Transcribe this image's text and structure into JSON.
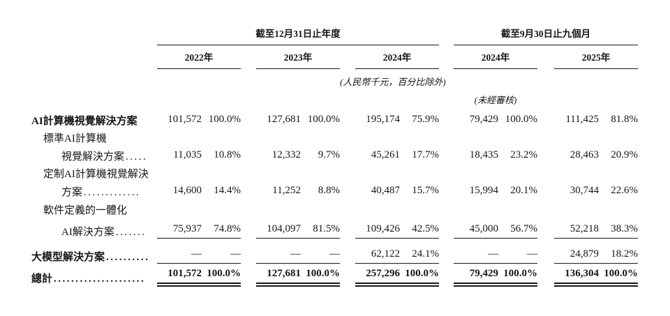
{
  "table": {
    "col_groups": [
      {
        "label": "截至12月31日止年度",
        "years": [
          "2022年",
          "2023年",
          "2024年"
        ]
      },
      {
        "label": "截至9月30日止九個月",
        "years": [
          "2024年",
          "2025年"
        ]
      }
    ],
    "notes": {
      "currency": "(人民幣千元，百分比除外)",
      "unaudited": "(未經審核)"
    },
    "rows": [
      {
        "label": "AI計算機視覺解決方案",
        "leader": "",
        "values": [
          "101,572",
          "100.0%",
          "127,681",
          "100.0%",
          "195,174",
          "75.9%",
          "79,429",
          "100.0%",
          "111,425",
          "81.8%"
        ]
      },
      {
        "label": "標準AI計算機",
        "leader": ""
      },
      {
        "label": "視覺解決方案",
        "leader": ".....",
        "values": [
          "11,035",
          "10.8%",
          "12,332",
          "9.7%",
          "45,261",
          "17.7%",
          "18,435",
          "23.2%",
          "28,463",
          "20.9%"
        ]
      },
      {
        "label": "定制AI計算機視覺解決",
        "leader": ""
      },
      {
        "label": "方案",
        "leader": ".............",
        "values": [
          "14,600",
          "14.4%",
          "11,252",
          "8.8%",
          "40,487",
          "15.7%",
          "15,994",
          "20.1%",
          "30,744",
          "22.6%"
        ]
      },
      {
        "label": "軟件定義的一體化",
        "leader": ""
      },
      {
        "label": "AI解決方案",
        "leader": ".......",
        "values": [
          "75,937",
          "74.8%",
          "104,097",
          "81.5%",
          "109,426",
          "42.5%",
          "45,000",
          "56.7%",
          "52,218",
          "38.3%"
        ]
      },
      {
        "label": "大模型解決方案",
        "leader": "..........",
        "values": [
          "—",
          "—",
          "—",
          "—",
          "62,122",
          "24.1%",
          "—",
          "—",
          "24,879",
          "18.2%"
        ]
      },
      {
        "label": "總計",
        "leader": ".....................",
        "values": [
          "101,572",
          "100.0%",
          "127,681",
          "100.0%",
          "257,296",
          "100.0%",
          "79,429",
          "100.0%",
          "136,304",
          "100.0%"
        ]
      }
    ]
  }
}
